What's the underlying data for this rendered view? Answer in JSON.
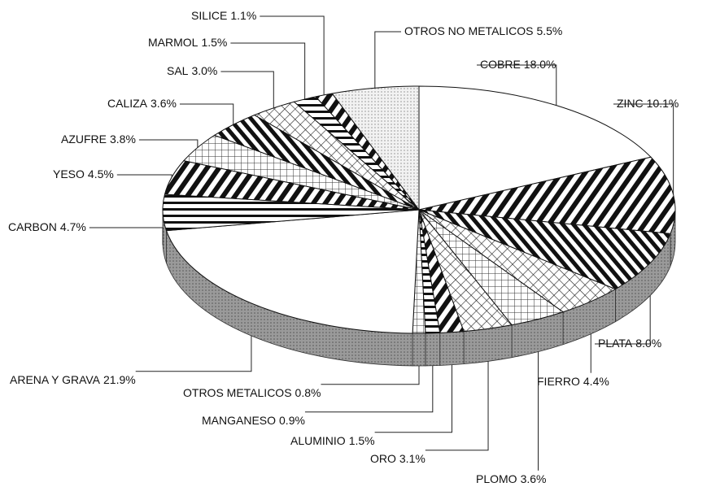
{
  "chart_data": {
    "type": "pie",
    "categories": [
      "COBRE",
      "ZINC",
      "PLATA",
      "FIERRO",
      "PLOMO",
      "ORO",
      "ALUMINIO",
      "MANGANESO",
      "OTROS METALICOS",
      "ARENA Y GRAVA",
      "CARBON",
      "YESO",
      "AZUFRE",
      "CALIZA",
      "SAL",
      "MARMOL",
      "SILICE",
      "OTROS NO METALICOS"
    ],
    "values": [
      18.0,
      10.1,
      8.0,
      4.4,
      3.6,
      3.1,
      1.5,
      0.9,
      0.8,
      21.9,
      4.7,
      4.5,
      3.8,
      3.6,
      3.0,
      1.5,
      1.1,
      5.5
    ],
    "value_labels": [
      "18.0%",
      "10.1%",
      "8.0%",
      "4.4%",
      "3.6%",
      "3.1%",
      "1.5%",
      "0.9%",
      "0.8%",
      "21.9%",
      "4.7%",
      "4.5%",
      "3.8%",
      "3.6%",
      "3.0%",
      "1.5%",
      "1.1%",
      "5.5%"
    ]
  }
}
